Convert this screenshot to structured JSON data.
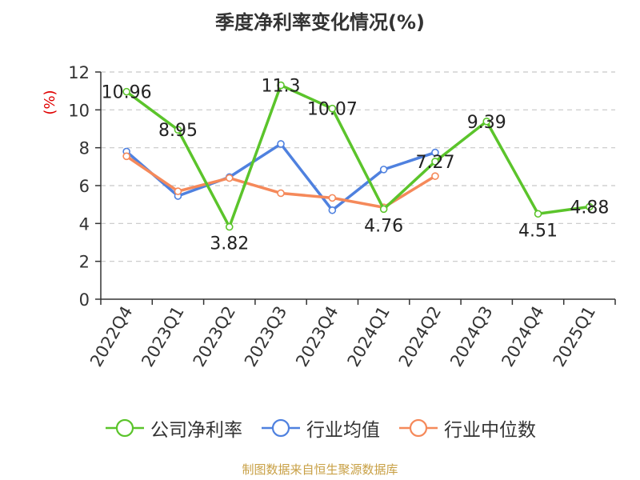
{
  "colors": {
    "company": "#5bc42b",
    "industry_avg": "#4f81df",
    "industry_median": "#f5895a",
    "axis": "#333333",
    "grid": "#c8c8c8",
    "ylabel": "#e00000"
  },
  "chart_data": {
    "type": "line",
    "title": "季度净利率变化情况(%)",
    "ylabel": "(%)",
    "xlabel": "",
    "ylim": [
      0,
      12
    ],
    "yticks": [
      0,
      2,
      4,
      6,
      8,
      10,
      12
    ],
    "grid": true,
    "legend_position": "bottom",
    "categories": [
      "2022Q4",
      "2023Q1",
      "2023Q2",
      "2023Q3",
      "2023Q4",
      "2024Q1",
      "2024Q2",
      "2024Q3",
      "2024Q4",
      "2025Q1"
    ],
    "series": [
      {
        "name": "公司净利率",
        "color_key": "company",
        "values": [
          10.96,
          8.95,
          3.82,
          11.3,
          10.07,
          4.76,
          7.27,
          9.39,
          4.51,
          4.88
        ],
        "labels": [
          "10.96",
          "8.95",
          "3.82",
          "11.3",
          "10.07",
          "4.76",
          "7.27",
          "9.39",
          "4.51",
          "4.88"
        ]
      },
      {
        "name": "行业均值",
        "color_key": "industry_avg",
        "values": [
          7.8,
          5.45,
          6.45,
          8.2,
          4.7,
          6.85,
          7.75,
          null,
          null,
          null
        ]
      },
      {
        "name": "行业中位数",
        "color_key": "industry_median",
        "values": [
          7.55,
          5.7,
          6.4,
          5.6,
          5.35,
          4.85,
          6.5,
          null,
          null,
          null
        ]
      }
    ]
  },
  "source": "制图数据来自恒生聚源数据库"
}
